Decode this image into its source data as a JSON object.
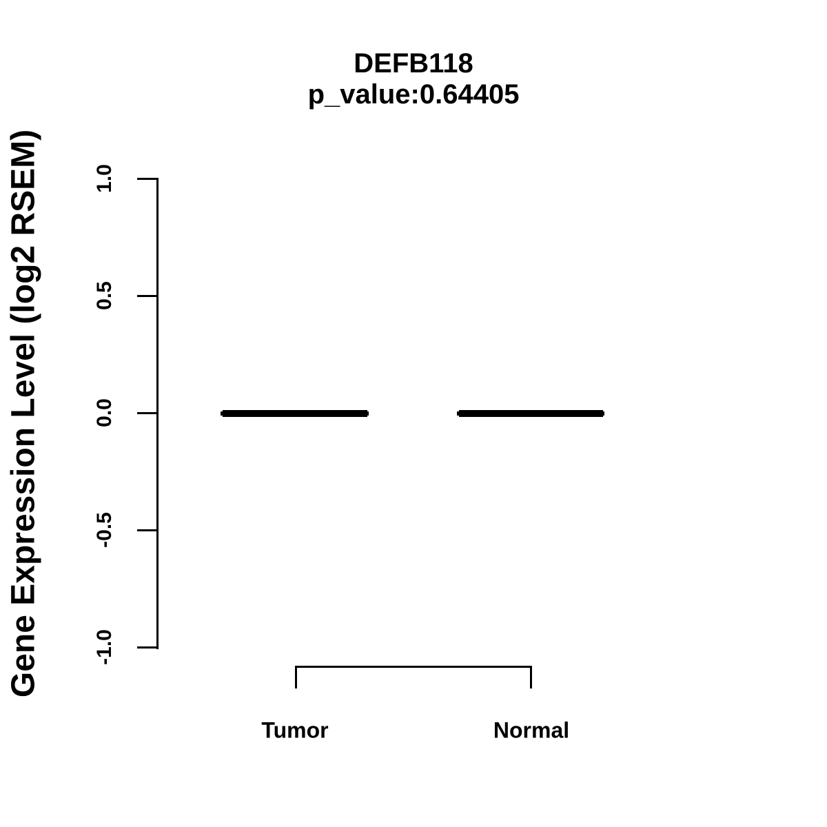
{
  "title": "DEFB118",
  "subtitle": "p_value:0.64405",
  "y_axis": {
    "label": "Gene Expression Level (log2 RSEM)",
    "tick_labels": [
      "1.0",
      "0.5",
      "0.0",
      "-0.5",
      "-1.0"
    ]
  },
  "x_axis": {
    "categories": [
      "Tumor",
      "Normal"
    ]
  },
  "chart_data": {
    "type": "boxplot",
    "title": "DEFB118",
    "subtitle": "p_value:0.64405",
    "gene": "DEFB118",
    "p_value": 0.64405,
    "ylabel": "Gene Expression Level (log2 RSEM)",
    "xlabel": "",
    "categories": [
      "Tumor",
      "Normal"
    ],
    "series": [
      {
        "name": "Tumor",
        "median": 0,
        "q1": 0,
        "q3": 0,
        "whisker_low": 0,
        "whisker_high": 0
      },
      {
        "name": "Normal",
        "median": 0,
        "q1": 0,
        "q3": 0,
        "whisker_low": 0,
        "whisker_high": 0
      }
    ],
    "ylim": [
      -1.0,
      1.0
    ],
    "yticks": [
      1.0,
      0.5,
      0.0,
      -0.5,
      -1.0
    ],
    "grid": false,
    "legend_position": "none",
    "annotations": [
      "comparison bracket linking Tumor and Normal group centers"
    ],
    "colors": {
      "foreground": "#000000",
      "background": "#ffffff"
    }
  }
}
